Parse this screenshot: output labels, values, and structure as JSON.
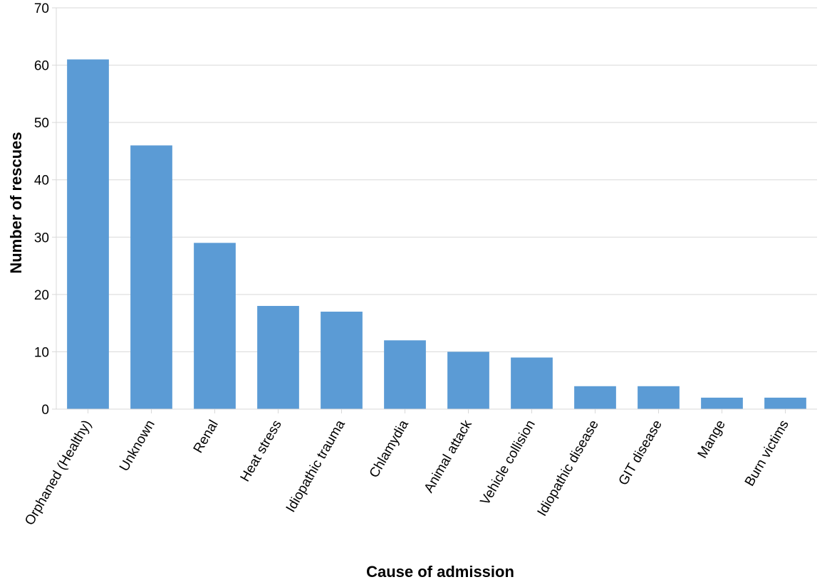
{
  "chart_data": {
    "type": "bar",
    "title": "",
    "xlabel": "Cause of admission",
    "ylabel": "Number of rescues",
    "ylim": [
      0,
      70
    ],
    "yticks": [
      0,
      10,
      20,
      30,
      40,
      50,
      60,
      70
    ],
    "grid": true,
    "legend": "none",
    "categories": [
      "Orphaned (Healthy)",
      "Unknown",
      "Renal",
      "Heat stress",
      "Idiopathic trauma",
      "Chlamydia",
      "Animal attack",
      "Vehicle collision",
      "Idiopathic disease",
      "GIT disease",
      "Mange",
      "Burn victims"
    ],
    "series": [
      {
        "values": [
          61,
          46,
          29,
          18,
          17,
          12,
          10,
          9,
          4,
          4,
          2,
          2
        ],
        "color": "#5b9bd5"
      }
    ]
  }
}
